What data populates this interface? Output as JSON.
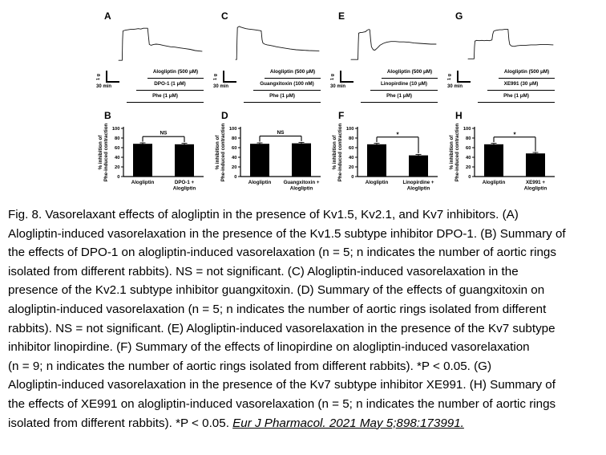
{
  "figure": {
    "columns": [
      {
        "trace_label": "A",
        "bar_label": "B"
      },
      {
        "trace_label": "C",
        "bar_label": "D"
      },
      {
        "trace_label": "E",
        "bar_label": "F"
      },
      {
        "trace_label": "G",
        "bar_label": "H"
      }
    ]
  },
  "chart_data": [
    {
      "type": "line",
      "panel": "A",
      "description": "Isometric tension recording: Phe-induced contraction, alogliptin-induced relaxation in presence of DPO-1",
      "scale_bar": {
        "vertical": "1 g",
        "horizontal": "30 min"
      },
      "applications": [
        "Alogliptin (500 μM)",
        "DPO-1 (1 μM)",
        "Phe (1 μM)"
      ],
      "points": [
        [
          2,
          6
        ],
        [
          6,
          6
        ],
        [
          6.5,
          60
        ],
        [
          7,
          84
        ],
        [
          10,
          86
        ],
        [
          13,
          87
        ],
        [
          16,
          88
        ],
        [
          19,
          88
        ],
        [
          22,
          89
        ],
        [
          25,
          90
        ],
        [
          28,
          89
        ],
        [
          31,
          91
        ],
        [
          34,
          91
        ],
        [
          36,
          91
        ],
        [
          37,
          70
        ],
        [
          38,
          48
        ],
        [
          40,
          46
        ],
        [
          43,
          48
        ],
        [
          46,
          49
        ],
        [
          50,
          48
        ],
        [
          54,
          46
        ],
        [
          58,
          44
        ],
        [
          63,
          42
        ],
        [
          68,
          41
        ],
        [
          74,
          39
        ],
        [
          80,
          37
        ],
        [
          86,
          35
        ],
        [
          92,
          32
        ],
        [
          100,
          30
        ]
      ]
    },
    {
      "type": "bar",
      "panel": "B",
      "categories": [
        "Alogliptin",
        "DPO-1 + Alogliptin"
      ],
      "values": [
        68,
        67
      ],
      "errors": [
        2,
        2
      ],
      "significance": "NS",
      "ylabel": "% inhibition of Phe-induced contraction",
      "ylabel_lines": [
        "% inhibition of",
        "Phe-induced contraction"
      ],
      "ylim": [
        0,
        100
      ],
      "yticks": [
        0,
        20,
        40,
        60,
        80,
        100
      ],
      "bar_color": "#000000"
    },
    {
      "type": "line",
      "panel": "C",
      "description": "Isometric tension recording: Phe-induced contraction, alogliptin-induced relaxation in presence of guangxitoxin",
      "scale_bar": {
        "vertical": "1 g",
        "horizontal": "30 min"
      },
      "applications": [
        "Alogliptin (500 μM)",
        "Guangxitoxin (100 nM)",
        "Phe (1 μM)"
      ],
      "points": [
        [
          2,
          8
        ],
        [
          3,
          8
        ],
        [
          3.5,
          60
        ],
        [
          4,
          93
        ],
        [
          6,
          96
        ],
        [
          8,
          94
        ],
        [
          11,
          92
        ],
        [
          14,
          90
        ],
        [
          17,
          89
        ],
        [
          20,
          88
        ],
        [
          24,
          87
        ],
        [
          27,
          86
        ],
        [
          30,
          85
        ],
        [
          32,
          84
        ],
        [
          33,
          60
        ],
        [
          34,
          52
        ],
        [
          36,
          49
        ],
        [
          39,
          47
        ],
        [
          42,
          46
        ],
        [
          46,
          44
        ],
        [
          50,
          42
        ],
        [
          55,
          40
        ],
        [
          60,
          38
        ],
        [
          66,
          36
        ],
        [
          73,
          34
        ],
        [
          80,
          33
        ],
        [
          88,
          32
        ],
        [
          100,
          31
        ]
      ]
    },
    {
      "type": "bar",
      "panel": "D",
      "categories": [
        "Alogliptin",
        "Guangxitoxin + Alogliptin"
      ],
      "values": [
        68,
        69
      ],
      "errors": [
        2,
        2
      ],
      "significance": "NS",
      "ylabel": "% inhibition of Phe-induced contraction",
      "ylabel_lines": [
        "% inhibition of",
        "Phe-induced contraction"
      ],
      "ylim": [
        0,
        100
      ],
      "yticks": [
        0,
        20,
        40,
        60,
        80,
        100
      ],
      "bar_color": "#000000"
    },
    {
      "type": "line",
      "panel": "E",
      "description": "Isometric tension recording: Phe-induced contraction, alogliptin-induced relaxation in presence of linopirdine",
      "scale_bar": {
        "vertical": "1 g",
        "horizontal": "30 min"
      },
      "applications": [
        "Alogliptin (500 μM)",
        "Linopirdine (10 μM)",
        "Phe (1 μM)"
      ],
      "points": [
        [
          0,
          8
        ],
        [
          8,
          8
        ],
        [
          8.5,
          50
        ],
        [
          9,
          78
        ],
        [
          11,
          80
        ],
        [
          13,
          80
        ],
        [
          15,
          81
        ],
        [
          17,
          82
        ],
        [
          19,
          86
        ],
        [
          21,
          88
        ],
        [
          22,
          87
        ],
        [
          23,
          60
        ],
        [
          24,
          42
        ],
        [
          26,
          34
        ],
        [
          28,
          33
        ],
        [
          31,
          39
        ],
        [
          34,
          46
        ],
        [
          38,
          51
        ],
        [
          42,
          54
        ],
        [
          47,
          56
        ],
        [
          52,
          56
        ],
        [
          57,
          55
        ],
        [
          62,
          55
        ],
        [
          68,
          54
        ],
        [
          74,
          52
        ],
        [
          80,
          51
        ],
        [
          87,
          50
        ],
        [
          94,
          49
        ],
        [
          100,
          49
        ]
      ]
    },
    {
      "type": "bar",
      "panel": "F",
      "categories": [
        "Alogliptin",
        "Linopirdine + Alogliptin"
      ],
      "values": [
        67,
        44
      ],
      "errors": [
        2,
        2
      ],
      "significance": "*",
      "ylabel": "% inhibition of Phe-induced contraction",
      "ylabel_lines": [
        "% inhibition of",
        "Phe-induced contraction"
      ],
      "ylim": [
        0,
        100
      ],
      "yticks": [
        0,
        20,
        40,
        60,
        80,
        100
      ],
      "bar_color": "#000000"
    },
    {
      "type": "line",
      "panel": "G",
      "description": "Isometric tension recording: Phe-induced contraction, alogliptin-induced relaxation in presence of XE991",
      "scale_bar": {
        "vertical": "1 g",
        "horizontal": "30 min"
      },
      "applications": [
        "Alogliptin (500 μM)",
        "XE991 (30 μM)",
        "Phe (1 μM)"
      ],
      "points": [
        [
          0,
          10
        ],
        [
          7,
          10
        ],
        [
          7.5,
          40
        ],
        [
          8,
          57
        ],
        [
          10,
          59
        ],
        [
          13,
          58
        ],
        [
          16,
          59
        ],
        [
          19,
          58
        ],
        [
          22,
          59
        ],
        [
          25,
          58
        ],
        [
          28,
          60
        ],
        [
          29,
          75
        ],
        [
          30,
          83
        ],
        [
          32,
          85
        ],
        [
          34,
          86
        ],
        [
          37,
          87
        ],
        [
          40,
          87
        ],
        [
          43,
          88
        ],
        [
          46,
          88
        ],
        [
          47,
          88
        ],
        [
          48,
          60
        ],
        [
          49,
          48
        ],
        [
          51,
          44
        ],
        [
          54,
          43
        ],
        [
          58,
          45
        ],
        [
          63,
          46
        ],
        [
          68,
          46
        ],
        [
          74,
          47
        ],
        [
          80,
          47
        ],
        [
          86,
          48
        ],
        [
          92,
          48
        ],
        [
          100,
          47
        ]
      ]
    },
    {
      "type": "bar",
      "panel": "H",
      "categories": [
        "Alogliptin",
        "XE991 + Alogliptin"
      ],
      "values": [
        67,
        48
      ],
      "errors": [
        2,
        2
      ],
      "significance": "*",
      "ylabel": "% inhibition of Phe-induced contraction",
      "ylabel_lines": [
        "% inhibition of",
        "Phe-induced contraction"
      ],
      "ylim": [
        0,
        100
      ],
      "yticks": [
        0,
        20,
        40,
        60,
        80,
        100
      ],
      "bar_color": "#000000"
    }
  ],
  "caption": {
    "lines": [
      "Fig. 8. Vasorelaxant effects of alogliptin in the presence of Kv1.5, Kv2.1, and Kv7 inhibitors. (A)",
      "Alogliptin-induced vasorelaxation in the presence of the Kv1.5 subtype inhibitor DPO-1. (B) Summary of",
      "the effects of DPO-1 on alogliptin-induced vasorelaxation (n = 5; n indicates the number of aortic rings",
      "isolated from different rabbits). NS = not significant. (C) Alogliptin-induced vasorelaxation in the",
      "presence of the Kv2.1 subtype inhibitor guangxitoxin. (D) Summary of the effects of guangxitoxin on",
      "alogliptin-induced vasorelaxation (n = 5; n indicates the number of aortic rings isolated from different",
      "rabbits). NS = not significant. (E) Alogliptin-induced vasorelaxation in the presence of the Kv7 subtype",
      "inhibitor linopirdine. (F) Summary of the effects of linopirdine on alogliptin-induced vasorelaxation",
      "(n = 9; n indicates the number of aortic rings isolated from different rabbits). *P < 0.05. (G)",
      "Alogliptin-induced vasorelaxation in the presence of the Kv7 subtype inhibitor XE991. (H) Summary of",
      "the effects of XE991 on alogliptin-induced vasorelaxation (n = 5; n indicates the number of aortic rings"
    ],
    "last_line_prefix": "isolated from different rabbits). *P < 0.05. ",
    "citation": "Eur J Pharmacol. 2021 May 5;898:173991."
  }
}
